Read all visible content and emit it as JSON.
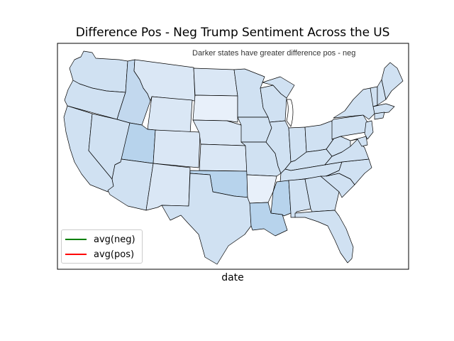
{
  "title": "Difference Pos - Neg Trump Sentiment Across the US",
  "annotation": "Darker states have greater difference pos - neg",
  "xlabel": "date",
  "legend": {
    "entries": [
      {
        "label": "avg(neg)",
        "color": "#008000"
      },
      {
        "label": "avg(pos)",
        "color": "#ff0000"
      }
    ]
  },
  "colors": {
    "lightest": "#e8f0fa",
    "light": "#dae7f5",
    "base": "#d0e1f2",
    "medium": "#c2d8ee",
    "dark": "#b7d3ec",
    "water": "#ffffff",
    "border": "#000000"
  },
  "map": {
    "region": "United States",
    "darker_states": [
      "Utah",
      "Oklahoma",
      "Louisiana",
      "Mississippi",
      "Idaho"
    ],
    "lightest_states": [
      "South Dakota",
      "Arkansas"
    ]
  }
}
